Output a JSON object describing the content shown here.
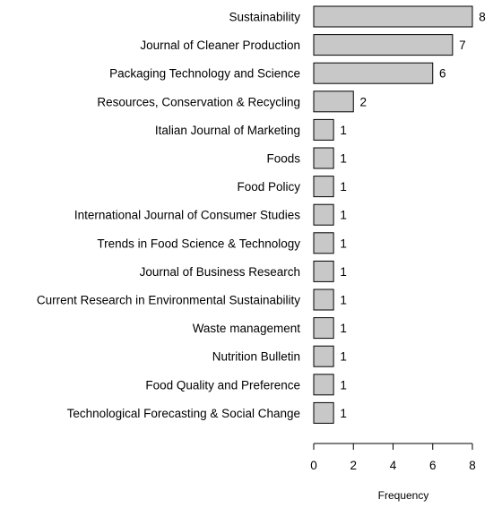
{
  "chart_data": {
    "type": "bar",
    "orientation": "horizontal",
    "categories": [
      "Sustainability",
      "Journal of Cleaner Production",
      "Packaging Technology and Science",
      "Resources, Conservation & Recycling",
      "Italian Journal of Marketing",
      "Foods",
      "Food Policy",
      "International Journal of Consumer Studies",
      "Trends in Food Science & Technology",
      "Journal of Business Research",
      "Current Research in Environmental Sustainability",
      "Waste management",
      "Nutrition Bulletin",
      "Food Quality and Preference",
      "Technological Forecasting & Social Change"
    ],
    "values": [
      8,
      7,
      6,
      2,
      1,
      1,
      1,
      1,
      1,
      1,
      1,
      1,
      1,
      1,
      1
    ],
    "xlabel": "Frequency",
    "ylabel": "",
    "xlim": [
      0,
      8
    ],
    "xticks": [
      "0",
      "2",
      "4",
      "6",
      "8"
    ],
    "grid": false,
    "bar_color": "#c8c8c8",
    "bar_edge_color": "#000000"
  }
}
